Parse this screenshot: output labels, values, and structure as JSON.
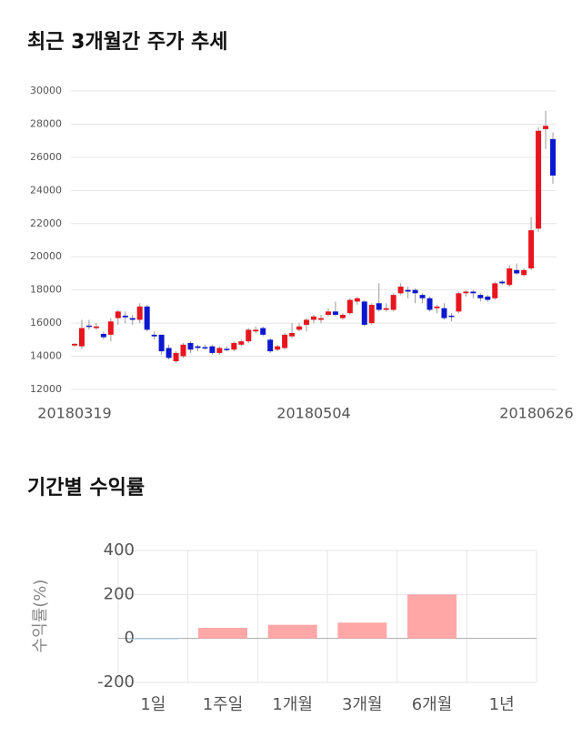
{
  "chart_data": [
    {
      "type": "candlestick",
      "title": "최근 3개월간 주가 추세",
      "categories": [
        "20180319",
        null,
        null,
        null,
        null,
        null,
        null,
        null,
        null,
        null,
        null,
        null,
        null,
        null,
        null,
        null,
        null,
        null,
        null,
        null,
        null,
        null,
        null,
        null,
        null,
        null,
        null,
        null,
        null,
        null,
        null,
        null,
        null,
        "20180504",
        null,
        null,
        null,
        null,
        null,
        null,
        null,
        null,
        null,
        null,
        null,
        null,
        null,
        null,
        null,
        null,
        null,
        null,
        null,
        null,
        null,
        null,
        null,
        null,
        null,
        null,
        null,
        null,
        null,
        null,
        null,
        null,
        "20180626"
      ],
      "open": [
        14650,
        14600,
        15850,
        15700,
        15350,
        15300,
        16300,
        16450,
        16300,
        16200,
        17000,
        15300,
        15300,
        14500,
        13700,
        14000,
        14800,
        14600,
        14550,
        14600,
        14200,
        14450,
        14400,
        14700,
        14900,
        15500,
        15700,
        15000,
        14400,
        14500,
        15200,
        15600,
        15900,
        16200,
        16200,
        16500,
        16700,
        16300,
        16600,
        17300,
        17300,
        16000,
        17200,
        16800,
        16800,
        17800,
        18000,
        18000,
        17700,
        17500,
        16900,
        16900,
        16450,
        16700,
        17800,
        17900,
        17700,
        17600,
        17500,
        18500,
        18300,
        19200,
        18900,
        19300,
        21700,
        27700,
        27100
      ],
      "high": [
        14800,
        16200,
        16200,
        16000,
        15500,
        16300,
        16800,
        16700,
        16500,
        17200,
        17100,
        15500,
        15300,
        14700,
        14300,
        14800,
        14900,
        14700,
        14700,
        14700,
        14600,
        14600,
        14900,
        15000,
        15700,
        15800,
        15800,
        15100,
        14700,
        15400,
        16000,
        16000,
        16300,
        16500,
        16500,
        16900,
        17300,
        16600,
        17500,
        17600,
        17400,
        17200,
        18400,
        17200,
        17800,
        18400,
        18200,
        18100,
        17800,
        17600,
        17100,
        17200,
        16600,
        17900,
        18000,
        18000,
        17800,
        17700,
        18500,
        18600,
        19500,
        19600,
        19300,
        22400,
        27800,
        28800,
        27500
      ],
      "low": [
        14550,
        14450,
        15600,
        15600,
        15000,
        14900,
        15900,
        16000,
        15900,
        16000,
        15500,
        15000,
        14100,
        13800,
        13600,
        13900,
        14200,
        14300,
        14400,
        14100,
        14100,
        14300,
        14300,
        14600,
        14800,
        15400,
        15200,
        14200,
        14300,
        14400,
        15100,
        15500,
        15500,
        16000,
        16000,
        16400,
        16400,
        16200,
        16500,
        17100,
        15800,
        15900,
        16700,
        16700,
        16700,
        17700,
        17500,
        17200,
        17200,
        16700,
        16600,
        16200,
        16100,
        16600,
        17600,
        17500,
        17300,
        17300,
        17400,
        18300,
        18200,
        18900,
        18800,
        19200,
        21500,
        26500,
        24400
      ],
      "close": [
        14750,
        15700,
        15800,
        15800,
        15150,
        16100,
        16700,
        16350,
        16200,
        17000,
        15600,
        15200,
        14300,
        13900,
        14200,
        14700,
        14400,
        14500,
        14500,
        14200,
        14500,
        14400,
        14800,
        14900,
        15600,
        15600,
        15300,
        14300,
        14600,
        15300,
        15400,
        15800,
        16200,
        16400,
        16300,
        16700,
        16500,
        16500,
        17400,
        17500,
        15900,
        17100,
        16800,
        16900,
        17700,
        18200,
        17900,
        17800,
        17500,
        16800,
        17000,
        16300,
        16400,
        17800,
        17900,
        17800,
        17500,
        17400,
        18400,
        18400,
        19300,
        19000,
        19200,
        21600,
        27600,
        27900,
        24900
      ],
      "up_color": "#e8151d",
      "down_color": "#0b18cf",
      "ylim": [
        12000,
        30000
      ],
      "yticks": [
        12000,
        14000,
        16000,
        18000,
        20000,
        22000,
        24000,
        26000,
        28000,
        30000
      ],
      "grid": true
    },
    {
      "type": "bar",
      "title": "기간별 수익률",
      "ylabel": "수익률(%)",
      "categories": [
        "1일",
        "1주일",
        "1개월",
        "3개월",
        "6개월",
        "1년"
      ],
      "values": [
        -3,
        48,
        62,
        72,
        200,
        null
      ],
      "colors": [
        "#a9d3ea",
        "#ffa7a7",
        "#ffa7a7",
        "#ffa7a7",
        "#ffa7a7",
        "#ffa7a7"
      ],
      "ylim": [
        -200,
        400
      ],
      "yticks": [
        -200,
        0,
        200,
        400
      ],
      "grid": true
    }
  ]
}
